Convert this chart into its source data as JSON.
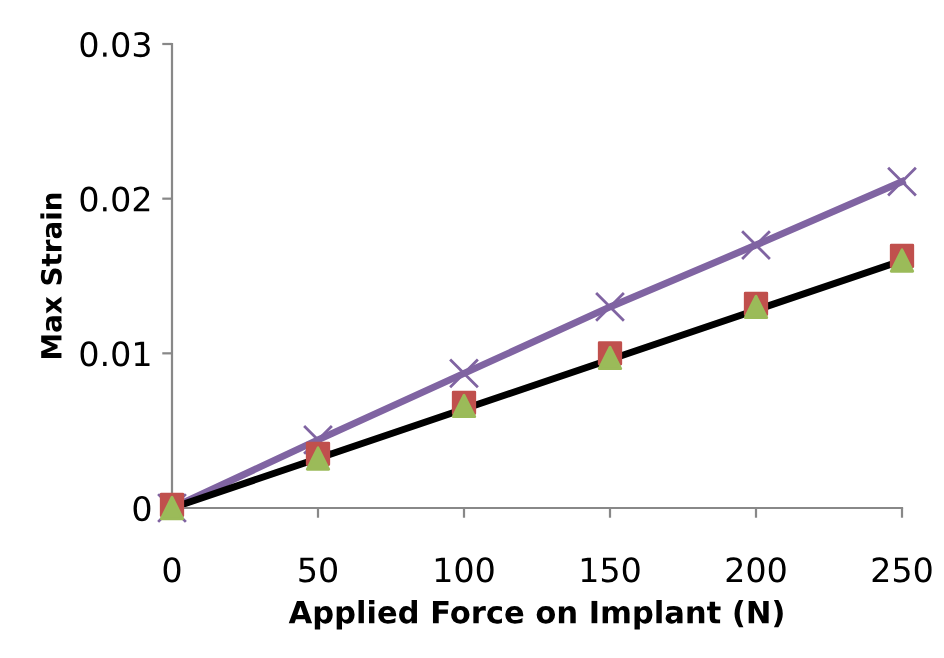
{
  "chart_data": {
    "type": "scatter",
    "xlabel": "Applied Force on Implant (N)",
    "ylabel": "Max Strain",
    "x": [
      0,
      50,
      100,
      150,
      200,
      250
    ],
    "series": [
      {
        "color": "#c0504d",
        "marker": "square",
        "values": [
          0.0002,
          0.0035,
          0.0068,
          0.01,
          0.0132,
          0.0163
        ]
      },
      {
        "color": "#9bbb59",
        "marker": "triangle",
        "values": [
          0,
          0.0032,
          0.0066,
          0.0097,
          0.013,
          0.016
        ]
      },
      {
        "type": "line",
        "color": "#8064a2",
        "marker": "cross",
        "values": [
          0,
          0.0044,
          0.0087,
          0.013,
          0.017,
          0.0211
        ]
      },
      {
        "type": "line",
        "color": "#000000",
        "marker": "none",
        "x": [
          0,
          250
        ],
        "values": [
          0,
          0.016
        ]
      }
    ],
    "xlim": [
      0,
      250
    ],
    "ylim": [
      0,
      0.03
    ],
    "xticks": [
      0,
      50,
      100,
      150,
      200,
      250
    ],
    "yticks": [
      0,
      0.01,
      0.02,
      0.03
    ],
    "grid": false
  }
}
